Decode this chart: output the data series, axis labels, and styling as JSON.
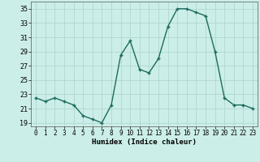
{
  "x": [
    0,
    1,
    2,
    3,
    4,
    5,
    6,
    7,
    8,
    9,
    10,
    11,
    12,
    13,
    14,
    15,
    16,
    17,
    18,
    19,
    20,
    21,
    22,
    23
  ],
  "y": [
    22.5,
    22.0,
    22.5,
    22.0,
    21.5,
    20.0,
    19.5,
    19.0,
    21.5,
    28.5,
    30.5,
    26.5,
    26.0,
    28.0,
    32.5,
    35.0,
    35.0,
    34.5,
    34.0,
    29.0,
    22.5,
    21.5,
    21.5,
    21.0
  ],
  "line_color": "#1c6b5e",
  "marker_color": "#1c6b5e",
  "bg_color": "#cceee8",
  "grid_color": "#b0d8d0",
  "xlabel": "Humidex (Indice chaleur)",
  "ylabel": "",
  "ylim": [
    18.5,
    36
  ],
  "xlim": [
    -0.5,
    23.5
  ],
  "yticks": [
    19,
    21,
    23,
    25,
    27,
    29,
    31,
    33,
    35
  ],
  "xticks": [
    0,
    1,
    2,
    3,
    4,
    5,
    6,
    7,
    8,
    9,
    10,
    11,
    12,
    13,
    14,
    15,
    16,
    17,
    18,
    19,
    20,
    21,
    22,
    23
  ],
  "label_fontsize": 6.5,
  "tick_fontsize": 6
}
